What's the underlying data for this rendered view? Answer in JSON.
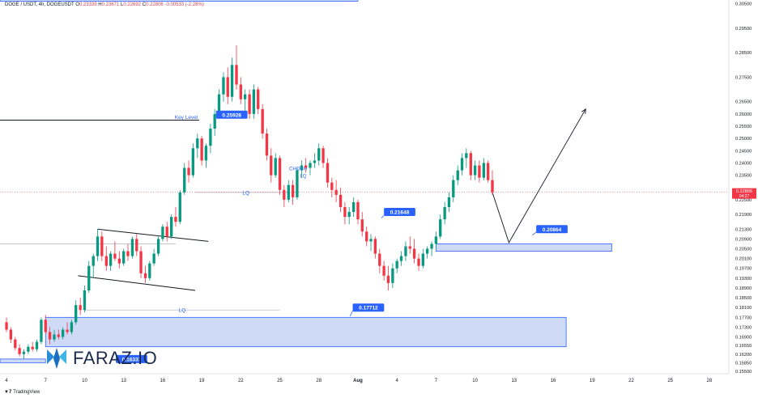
{
  "header": {
    "symbol": "DOGE / USDT, 4h, DOGEUSDT",
    "open_label": "O",
    "open": "0.23339",
    "high_label": "H",
    "high": "0.23671",
    "low_label": "L",
    "low": "0.22692",
    "close_label": "C",
    "close": "0.22806",
    "change": "-0.00533 (-2.28%)"
  },
  "branding": {
    "tradingview_label": "TradingView",
    "watermark_text": "FARAZ.IO",
    "watermark_color": "#2a8bd6"
  },
  "annotations": {
    "key_level": "Key Level",
    "lq_1": "LQ",
    "lq_2": "LQ",
    "choch": "CHOCH",
    "choch_lq": "LQ"
  },
  "price_tags": {
    "key_level_price": "0.25928",
    "mid_price": "0.21648",
    "zone_top_price": "0.20864",
    "zone_low_price": "0.17712",
    "bottom_price": "0.16337",
    "current_price": "0.22806",
    "countdown": "04:27"
  },
  "colors": {
    "up": "#089981",
    "down": "#f23645",
    "zone_fill": "#c7d4f5",
    "zone_stroke": "#2962ff",
    "label_bg": "#2962ff",
    "price_line": "#f23645"
  },
  "chart_data": {
    "type": "candlestick",
    "symbol": "DOGEUSDT",
    "timeframe": "4h",
    "ylim": [
      0.154,
      0.3065
    ],
    "y_ticks": [
      "0.30500",
      "0.29500",
      "0.28500",
      "0.27500",
      "0.26500",
      "0.26000",
      "0.25500",
      "0.25000",
      "0.24500",
      "0.24000",
      "0.23500",
      "0.22500",
      "0.21900",
      "0.21300",
      "0.20900",
      "0.20500",
      "0.20100",
      "0.19700",
      "0.19300",
      "0.18900",
      "0.18500",
      "0.18100",
      "0.17700",
      "0.17300",
      "0.16900",
      "0.16550",
      "0.16200",
      "0.15850",
      "0.15500"
    ],
    "y_tick_values": [
      0.305,
      0.295,
      0.285,
      0.275,
      0.265,
      0.26,
      0.255,
      0.25,
      0.245,
      0.24,
      0.235,
      0.225,
      0.219,
      0.213,
      0.209,
      0.205,
      0.201,
      0.197,
      0.193,
      0.189,
      0.185,
      0.181,
      0.177,
      0.173,
      0.169,
      0.1655,
      0.162,
      0.1585,
      0.155
    ],
    "x_ticks": [
      "4",
      "7",
      "10",
      "13",
      "16",
      "19",
      "22",
      "25",
      "28",
      "Aug",
      "4",
      "7",
      "10",
      "13",
      "16",
      "19",
      "22",
      "25",
      "28"
    ],
    "x_tick_days": [
      -27,
      -24,
      -21,
      -18,
      -15,
      -12,
      -9,
      -6,
      -3,
      0,
      3,
      6,
      9,
      12,
      15,
      18,
      21,
      24,
      27
    ],
    "x_range_days": [
      -27.5,
      28.5
    ],
    "candles": [
      {
        "d": -27.0,
        "o": 0.175,
        "h": 0.177,
        "l": 0.171,
        "c": 0.172
      },
      {
        "d": -26.67,
        "o": 0.172,
        "h": 0.173,
        "l": 0.1665,
        "c": 0.168
      },
      {
        "d": -26.33,
        "o": 0.168,
        "h": 0.169,
        "l": 0.1635,
        "c": 0.1645
      },
      {
        "d": -26.0,
        "o": 0.1645,
        "h": 0.166,
        "l": 0.161,
        "c": 0.162
      },
      {
        "d": -25.67,
        "o": 0.162,
        "h": 0.164,
        "l": 0.16,
        "c": 0.163
      },
      {
        "d": -25.33,
        "o": 0.163,
        "h": 0.166,
        "l": 0.162,
        "c": 0.165
      },
      {
        "d": -25.0,
        "o": 0.165,
        "h": 0.167,
        "l": 0.163,
        "c": 0.164
      },
      {
        "d": -24.67,
        "o": 0.164,
        "h": 0.168,
        "l": 0.163,
        "c": 0.167
      },
      {
        "d": -24.33,
        "o": 0.167,
        "h": 0.177,
        "l": 0.166,
        "c": 0.176
      },
      {
        "d": -24.0,
        "o": 0.176,
        "h": 0.178,
        "l": 0.17,
        "c": 0.171
      },
      {
        "d": -23.67,
        "o": 0.171,
        "h": 0.173,
        "l": 0.166,
        "c": 0.168
      },
      {
        "d": -23.33,
        "o": 0.168,
        "h": 0.172,
        "l": 0.167,
        "c": 0.17
      },
      {
        "d": -23.0,
        "o": 0.17,
        "h": 0.172,
        "l": 0.168,
        "c": 0.169
      },
      {
        "d": -22.67,
        "o": 0.169,
        "h": 0.173,
        "l": 0.168,
        "c": 0.172
      },
      {
        "d": -22.33,
        "o": 0.172,
        "h": 0.175,
        "l": 0.17,
        "c": 0.171
      },
      {
        "d": -22.0,
        "o": 0.171,
        "h": 0.176,
        "l": 0.17,
        "c": 0.175
      },
      {
        "d": -21.67,
        "o": 0.175,
        "h": 0.184,
        "l": 0.174,
        "c": 0.182
      },
      {
        "d": -21.33,
        "o": 0.182,
        "h": 0.185,
        "l": 0.178,
        "c": 0.18
      },
      {
        "d": -21.0,
        "o": 0.18,
        "h": 0.19,
        "l": 0.179,
        "c": 0.188
      },
      {
        "d": -20.67,
        "o": 0.188,
        "h": 0.2,
        "l": 0.187,
        "c": 0.198
      },
      {
        "d": -20.33,
        "o": 0.198,
        "h": 0.203,
        "l": 0.193,
        "c": 0.202
      },
      {
        "d": -20.0,
        "o": 0.202,
        "h": 0.213,
        "l": 0.2,
        "c": 0.21
      },
      {
        "d": -19.67,
        "o": 0.21,
        "h": 0.212,
        "l": 0.2,
        "c": 0.202
      },
      {
        "d": -19.33,
        "o": 0.202,
        "h": 0.206,
        "l": 0.196,
        "c": 0.198
      },
      {
        "d": -19.0,
        "o": 0.198,
        "h": 0.204,
        "l": 0.196,
        "c": 0.203
      },
      {
        "d": -18.67,
        "o": 0.203,
        "h": 0.208,
        "l": 0.2,
        "c": 0.201
      },
      {
        "d": -18.33,
        "o": 0.201,
        "h": 0.204,
        "l": 0.197,
        "c": 0.199
      },
      {
        "d": -18.0,
        "o": 0.199,
        "h": 0.205,
        "l": 0.198,
        "c": 0.204
      },
      {
        "d": -17.67,
        "o": 0.204,
        "h": 0.207,
        "l": 0.2,
        "c": 0.202
      },
      {
        "d": -17.33,
        "o": 0.202,
        "h": 0.21,
        "l": 0.201,
        "c": 0.209
      },
      {
        "d": -17.0,
        "o": 0.209,
        "h": 0.211,
        "l": 0.202,
        "c": 0.204
      },
      {
        "d": -16.67,
        "o": 0.204,
        "h": 0.206,
        "l": 0.193,
        "c": 0.195
      },
      {
        "d": -16.33,
        "o": 0.195,
        "h": 0.198,
        "l": 0.191,
        "c": 0.193
      },
      {
        "d": -16.0,
        "o": 0.193,
        "h": 0.2,
        "l": 0.192,
        "c": 0.199
      },
      {
        "d": -15.67,
        "o": 0.199,
        "h": 0.205,
        "l": 0.198,
        "c": 0.203
      },
      {
        "d": -15.33,
        "o": 0.203,
        "h": 0.21,
        "l": 0.202,
        "c": 0.209
      },
      {
        "d": -15.0,
        "o": 0.209,
        "h": 0.215,
        "l": 0.208,
        "c": 0.214
      },
      {
        "d": -14.67,
        "o": 0.214,
        "h": 0.216,
        "l": 0.208,
        "c": 0.21
      },
      {
        "d": -14.33,
        "o": 0.21,
        "h": 0.219,
        "l": 0.209,
        "c": 0.218
      },
      {
        "d": -14.0,
        "o": 0.218,
        "h": 0.222,
        "l": 0.214,
        "c": 0.216
      },
      {
        "d": -13.67,
        "o": 0.216,
        "h": 0.229,
        "l": 0.215,
        "c": 0.228
      },
      {
        "d": -13.33,
        "o": 0.228,
        "h": 0.24,
        "l": 0.227,
        "c": 0.238
      },
      {
        "d": -13.0,
        "o": 0.238,
        "h": 0.241,
        "l": 0.232,
        "c": 0.235
      },
      {
        "d": -12.67,
        "o": 0.235,
        "h": 0.248,
        "l": 0.234,
        "c": 0.246
      },
      {
        "d": -12.33,
        "o": 0.246,
        "h": 0.252,
        "l": 0.242,
        "c": 0.25
      },
      {
        "d": -12.0,
        "o": 0.25,
        "h": 0.251,
        "l": 0.239,
        "c": 0.241
      },
      {
        "d": -11.67,
        "o": 0.241,
        "h": 0.248,
        "l": 0.238,
        "c": 0.247
      },
      {
        "d": -11.33,
        "o": 0.247,
        "h": 0.256,
        "l": 0.244,
        "c": 0.254
      },
      {
        "d": -11.0,
        "o": 0.254,
        "h": 0.262,
        "l": 0.251,
        "c": 0.26
      },
      {
        "d": -10.67,
        "o": 0.26,
        "h": 0.27,
        "l": 0.258,
        "c": 0.268
      },
      {
        "d": -10.33,
        "o": 0.268,
        "h": 0.277,
        "l": 0.265,
        "c": 0.275
      },
      {
        "d": -10.0,
        "o": 0.275,
        "h": 0.279,
        "l": 0.264,
        "c": 0.267
      },
      {
        "d": -9.67,
        "o": 0.267,
        "h": 0.283,
        "l": 0.265,
        "c": 0.28
      },
      {
        "d": -9.33,
        "o": 0.28,
        "h": 0.288,
        "l": 0.27,
        "c": 0.272
      },
      {
        "d": -9.0,
        "o": 0.272,
        "h": 0.275,
        "l": 0.264,
        "c": 0.266
      },
      {
        "d": -8.67,
        "o": 0.266,
        "h": 0.27,
        "l": 0.26,
        "c": 0.268
      },
      {
        "d": -8.33,
        "o": 0.268,
        "h": 0.27,
        "l": 0.258,
        "c": 0.26
      },
      {
        "d": -8.0,
        "o": 0.26,
        "h": 0.272,
        "l": 0.258,
        "c": 0.27
      },
      {
        "d": -7.67,
        "o": 0.27,
        "h": 0.271,
        "l": 0.26,
        "c": 0.262
      },
      {
        "d": -7.33,
        "o": 0.262,
        "h": 0.264,
        "l": 0.25,
        "c": 0.252
      },
      {
        "d": -7.0,
        "o": 0.252,
        "h": 0.254,
        "l": 0.241,
        "c": 0.243
      },
      {
        "d": -6.67,
        "o": 0.243,
        "h": 0.246,
        "l": 0.232,
        "c": 0.235
      },
      {
        "d": -6.33,
        "o": 0.235,
        "h": 0.244,
        "l": 0.234,
        "c": 0.242
      },
      {
        "d": -6.0,
        "o": 0.242,
        "h": 0.243,
        "l": 0.227,
        "c": 0.229
      },
      {
        "d": -5.67,
        "o": 0.229,
        "h": 0.231,
        "l": 0.222,
        "c": 0.225
      },
      {
        "d": -5.33,
        "o": 0.225,
        "h": 0.233,
        "l": 0.224,
        "c": 0.231
      },
      {
        "d": -5.0,
        "o": 0.231,
        "h": 0.233,
        "l": 0.223,
        "c": 0.226
      },
      {
        "d": -4.67,
        "o": 0.226,
        "h": 0.238,
        "l": 0.225,
        "c": 0.237
      },
      {
        "d": -4.33,
        "o": 0.237,
        "h": 0.241,
        "l": 0.234,
        "c": 0.239
      },
      {
        "d": -4.0,
        "o": 0.239,
        "h": 0.242,
        "l": 0.236,
        "c": 0.238
      },
      {
        "d": -3.67,
        "o": 0.238,
        "h": 0.241,
        "l": 0.235,
        "c": 0.24
      },
      {
        "d": -3.33,
        "o": 0.24,
        "h": 0.244,
        "l": 0.238,
        "c": 0.241
      },
      {
        "d": -3.0,
        "o": 0.241,
        "h": 0.248,
        "l": 0.239,
        "c": 0.246
      },
      {
        "d": -2.67,
        "o": 0.246,
        "h": 0.247,
        "l": 0.238,
        "c": 0.24
      },
      {
        "d": -2.33,
        "o": 0.24,
        "h": 0.242,
        "l": 0.23,
        "c": 0.232
      },
      {
        "d": -2.0,
        "o": 0.232,
        "h": 0.234,
        "l": 0.226,
        "c": 0.229
      },
      {
        "d": -1.67,
        "o": 0.229,
        "h": 0.233,
        "l": 0.224,
        "c": 0.227
      },
      {
        "d": -1.33,
        "o": 0.227,
        "h": 0.23,
        "l": 0.22,
        "c": 0.222
      },
      {
        "d": -1.0,
        "o": 0.222,
        "h": 0.224,
        "l": 0.215,
        "c": 0.218
      },
      {
        "d": -0.67,
        "o": 0.218,
        "h": 0.222,
        "l": 0.215,
        "c": 0.22
      },
      {
        "d": -0.33,
        "o": 0.22,
        "h": 0.226,
        "l": 0.218,
        "c": 0.224
      },
      {
        "d": 0.0,
        "o": 0.224,
        "h": 0.225,
        "l": 0.215,
        "c": 0.217
      },
      {
        "d": 0.33,
        "o": 0.217,
        "h": 0.22,
        "l": 0.21,
        "c": 0.212
      },
      {
        "d": 0.67,
        "o": 0.212,
        "h": 0.214,
        "l": 0.206,
        "c": 0.208
      },
      {
        "d": 1.0,
        "o": 0.208,
        "h": 0.211,
        "l": 0.204,
        "c": 0.209
      },
      {
        "d": 1.33,
        "o": 0.209,
        "h": 0.21,
        "l": 0.201,
        "c": 0.203
      },
      {
        "d": 1.67,
        "o": 0.203,
        "h": 0.205,
        "l": 0.195,
        "c": 0.198
      },
      {
        "d": 2.0,
        "o": 0.198,
        "h": 0.2,
        "l": 0.192,
        "c": 0.194
      },
      {
        "d": 2.33,
        "o": 0.194,
        "h": 0.198,
        "l": 0.188,
        "c": 0.191
      },
      {
        "d": 2.67,
        "o": 0.191,
        "h": 0.199,
        "l": 0.189,
        "c": 0.197
      },
      {
        "d": 3.0,
        "o": 0.197,
        "h": 0.201,
        "l": 0.195,
        "c": 0.2
      },
      {
        "d": 3.33,
        "o": 0.2,
        "h": 0.204,
        "l": 0.198,
        "c": 0.202
      },
      {
        "d": 3.67,
        "o": 0.202,
        "h": 0.208,
        "l": 0.2,
        "c": 0.206
      },
      {
        "d": 4.0,
        "o": 0.206,
        "h": 0.21,
        "l": 0.203,
        "c": 0.205
      },
      {
        "d": 4.33,
        "o": 0.205,
        "h": 0.209,
        "l": 0.199,
        "c": 0.201
      },
      {
        "d": 4.67,
        "o": 0.201,
        "h": 0.203,
        "l": 0.196,
        "c": 0.198
      },
      {
        "d": 5.0,
        "o": 0.198,
        "h": 0.205,
        "l": 0.197,
        "c": 0.203
      },
      {
        "d": 5.33,
        "o": 0.203,
        "h": 0.206,
        "l": 0.201,
        "c": 0.205
      },
      {
        "d": 5.67,
        "o": 0.205,
        "h": 0.208,
        "l": 0.202,
        "c": 0.207
      },
      {
        "d": 6.0,
        "o": 0.207,
        "h": 0.212,
        "l": 0.205,
        "c": 0.21
      },
      {
        "d": 6.33,
        "o": 0.21,
        "h": 0.219,
        "l": 0.209,
        "c": 0.217
      },
      {
        "d": 6.67,
        "o": 0.217,
        "h": 0.224,
        "l": 0.215,
        "c": 0.222
      },
      {
        "d": 7.0,
        "o": 0.222,
        "h": 0.228,
        "l": 0.22,
        "c": 0.226
      },
      {
        "d": 7.33,
        "o": 0.226,
        "h": 0.235,
        "l": 0.224,
        "c": 0.233
      },
      {
        "d": 7.67,
        "o": 0.233,
        "h": 0.239,
        "l": 0.231,
        "c": 0.237
      },
      {
        "d": 8.0,
        "o": 0.237,
        "h": 0.244,
        "l": 0.235,
        "c": 0.242
      },
      {
        "d": 8.33,
        "o": 0.242,
        "h": 0.246,
        "l": 0.238,
        "c": 0.244
      },
      {
        "d": 8.67,
        "o": 0.244,
        "h": 0.245,
        "l": 0.233,
        "c": 0.235
      },
      {
        "d": 9.0,
        "o": 0.235,
        "h": 0.241,
        "l": 0.233,
        "c": 0.239
      },
      {
        "d": 9.33,
        "o": 0.239,
        "h": 0.241,
        "l": 0.232,
        "c": 0.234
      },
      {
        "d": 9.67,
        "o": 0.234,
        "h": 0.242,
        "l": 0.233,
        "c": 0.24
      },
      {
        "d": 10.0,
        "o": 0.24,
        "h": 0.241,
        "l": 0.232,
        "c": 0.233
      },
      {
        "d": 10.33,
        "o": 0.233,
        "h": 0.237,
        "l": 0.227,
        "c": 0.228
      }
    ],
    "zones": [
      {
        "name": "upper_demand_zone",
        "d_start": 6.0,
        "d_end": 19.5,
        "y_low": 0.204,
        "y_high": 0.207
      },
      {
        "name": "lower_demand_zone",
        "d_start": -24.0,
        "d_end": 16.0,
        "y_low": 0.165,
        "y_high": 0.177
      },
      {
        "name": "bottom_zone",
        "d_start": -27.5,
        "d_end": -24.0,
        "y_low": 0.1585,
        "y_high": 0.16
      },
      {
        "name": "top_zone",
        "d_start": -27.5,
        "d_end": 0.0,
        "y_low": 0.306,
        "y_high": 0.308
      }
    ],
    "lines": [
      {
        "name": "key_level_line",
        "d1": -27.5,
        "y1": 0.2575,
        "d2": -12.2,
        "y2": 0.2575
      },
      {
        "name": "channel_top_line",
        "d1": -20.0,
        "y1": 0.213,
        "d2": -11.5,
        "y2": 0.208
      },
      {
        "name": "channel_bottom_line",
        "d1": -21.5,
        "y1": 0.194,
        "d2": -12.5,
        "y2": 0.188
      },
      {
        "name": "lq_line_upper",
        "d1": -12.5,
        "y1": 0.228,
        "d2": -4.5,
        "y2": 0.228
      },
      {
        "name": "lq_line_lower",
        "d1": -21.0,
        "y1": 0.18,
        "d2": -6.0,
        "y2": 0.18
      },
      {
        "name": "range_line_left",
        "d1": -27.5,
        "y1": 0.207,
        "d2": -14.0,
        "y2": 0.207
      }
    ],
    "projection": [
      {
        "d": 10.33,
        "y": 0.228
      },
      {
        "d": 11.6,
        "y": 0.2075
      },
      {
        "d": 17.5,
        "y": 0.262
      }
    ],
    "current_price_line": 0.22806
  }
}
